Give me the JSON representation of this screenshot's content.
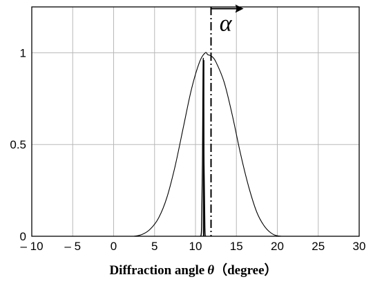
{
  "chart_data": {
    "type": "line",
    "title": "",
    "xlabel_text": "Diffraction angle",
    "xlabel_symbol": "θ",
    "xlabel_unit": "（degree）",
    "ylabel": "",
    "xlim": [
      -10,
      30
    ],
    "ylim": [
      0,
      1.25
    ],
    "grid": true,
    "x_ticks": [
      -10,
      -5,
      0,
      5,
      10,
      15,
      20,
      25,
      30
    ],
    "x_tick_labels": [
      "– 10",
      "– 5",
      "0",
      "5",
      "10",
      "15",
      "20",
      "25",
      "30"
    ],
    "y_ticks": [
      0,
      0.5,
      1
    ],
    "y_tick_labels": [
      "0",
      "0.5",
      "1"
    ],
    "series": [
      {
        "style": "solid-thin",
        "x": [
          2.5,
          3.5,
          4.5,
          5.5,
          6.5,
          7.5,
          8.5,
          9.5,
          10.5,
          11.2,
          11.5,
          12.0,
          12.5,
          13.5,
          14.5,
          15.5,
          16.5,
          17.5,
          18.5,
          19.5,
          20.5
        ],
        "y": [
          0.0,
          0.01,
          0.04,
          0.1,
          0.21,
          0.38,
          0.59,
          0.8,
          0.95,
          1.0,
          0.99,
          0.98,
          0.95,
          0.84,
          0.66,
          0.45,
          0.27,
          0.13,
          0.05,
          0.01,
          0.0
        ]
      },
      {
        "style": "solid-narrow-peak",
        "x": [
          10.6,
          10.75,
          10.85,
          10.95,
          11.05,
          11.15,
          11.25
        ],
        "y": [
          0.0,
          0.05,
          0.4,
          0.97,
          0.4,
          0.05,
          0.0
        ]
      }
    ],
    "vertical_lines": [
      {
        "x": 11.0,
        "style": "solid"
      },
      {
        "x": 11.9,
        "style": "dash-dot"
      }
    ],
    "annotation": {
      "text": "α",
      "arrow": "right",
      "x": 12.5,
      "y": 1.15
    }
  }
}
